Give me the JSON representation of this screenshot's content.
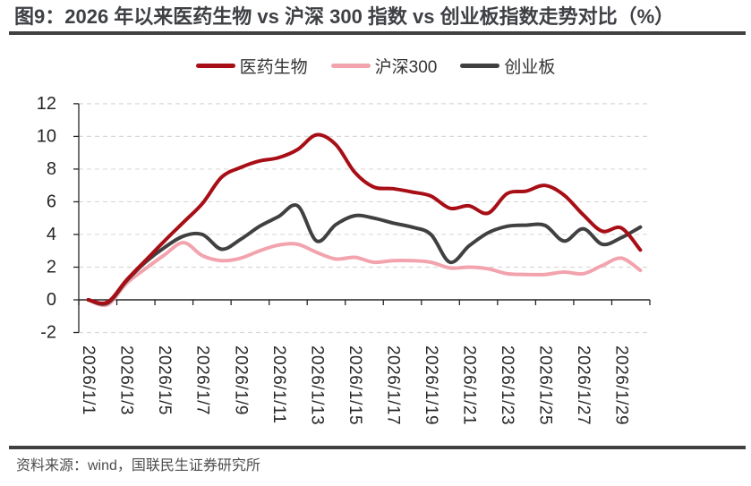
{
  "header": {
    "title": "图9：2026 年以来医药生物 vs 沪深 300 指数 vs 创业板指数走势对比（%）"
  },
  "source": {
    "text": "资料来源：wind，国联民生证券研究所"
  },
  "colors": {
    "red": "#A80E16",
    "pink": "#F2A3AD",
    "gray": "#404040",
    "grid": "#D9D9D9",
    "axis": "#262626",
    "rule": "#404040",
    "title_text": "#3E4044",
    "source_text": "#4D4D4D"
  },
  "chart_data": {
    "type": "line",
    "title": "2026 年以来医药生物 vs 沪深 300 指数 vs 创业板指数走势对比（%）",
    "xlabel": "",
    "ylabel": "",
    "ylim": [
      -2,
      12
    ],
    "yticks": [
      -2,
      0,
      2,
      4,
      6,
      8,
      10,
      12
    ],
    "grid": "horizontal-dashed",
    "legend_position": "top",
    "x_tick_label_step": 2,
    "x": [
      "2026/1/1",
      "2026/1/2",
      "2026/1/3",
      "2026/1/4",
      "2026/1/5",
      "2026/1/6",
      "2026/1/7",
      "2026/1/8",
      "2026/1/9",
      "2026/1/10",
      "2026/1/11",
      "2026/1/12",
      "2026/1/13",
      "2026/1/14",
      "2026/1/15",
      "2026/1/16",
      "2026/1/17",
      "2026/1/18",
      "2026/1/19",
      "2026/1/20",
      "2026/1/21",
      "2026/1/22",
      "2026/1/23",
      "2026/1/24",
      "2026/1/25",
      "2026/1/26",
      "2026/1/27",
      "2026/1/28",
      "2026/1/29",
      "2026/1/30"
    ],
    "series": [
      {
        "name": "医药生物",
        "color": "#A80E16",
        "values": [
          0,
          -0.15,
          1.2,
          2.4,
          3.6,
          4.75,
          5.9,
          7.5,
          8.1,
          8.5,
          8.7,
          9.2,
          10.1,
          9.5,
          7.8,
          6.9,
          6.8,
          6.6,
          6.35,
          5.6,
          5.75,
          5.3,
          6.5,
          6.65,
          7.0,
          6.4,
          5.2,
          4.2,
          4.4,
          3.05
        ]
      },
      {
        "name": "沪深300",
        "color": "#F2A3AD",
        "values": [
          0,
          -0.3,
          1.0,
          1.9,
          2.75,
          3.5,
          2.7,
          2.4,
          2.55,
          3.0,
          3.35,
          3.4,
          2.9,
          2.5,
          2.6,
          2.3,
          2.4,
          2.4,
          2.3,
          1.95,
          2.0,
          1.9,
          1.6,
          1.55,
          1.55,
          1.7,
          1.6,
          2.1,
          2.55,
          1.8
        ]
      },
      {
        "name": "创业板",
        "color": "#404040",
        "values": [
          0,
          -0.2,
          1.15,
          2.3,
          3.2,
          3.9,
          4.0,
          3.1,
          3.7,
          4.5,
          5.1,
          5.75,
          3.6,
          4.6,
          5.15,
          5.0,
          4.7,
          4.45,
          4.0,
          2.3,
          3.3,
          4.1,
          4.5,
          4.57,
          4.55,
          3.6,
          4.35,
          3.4,
          3.8,
          4.45
        ]
      }
    ]
  }
}
